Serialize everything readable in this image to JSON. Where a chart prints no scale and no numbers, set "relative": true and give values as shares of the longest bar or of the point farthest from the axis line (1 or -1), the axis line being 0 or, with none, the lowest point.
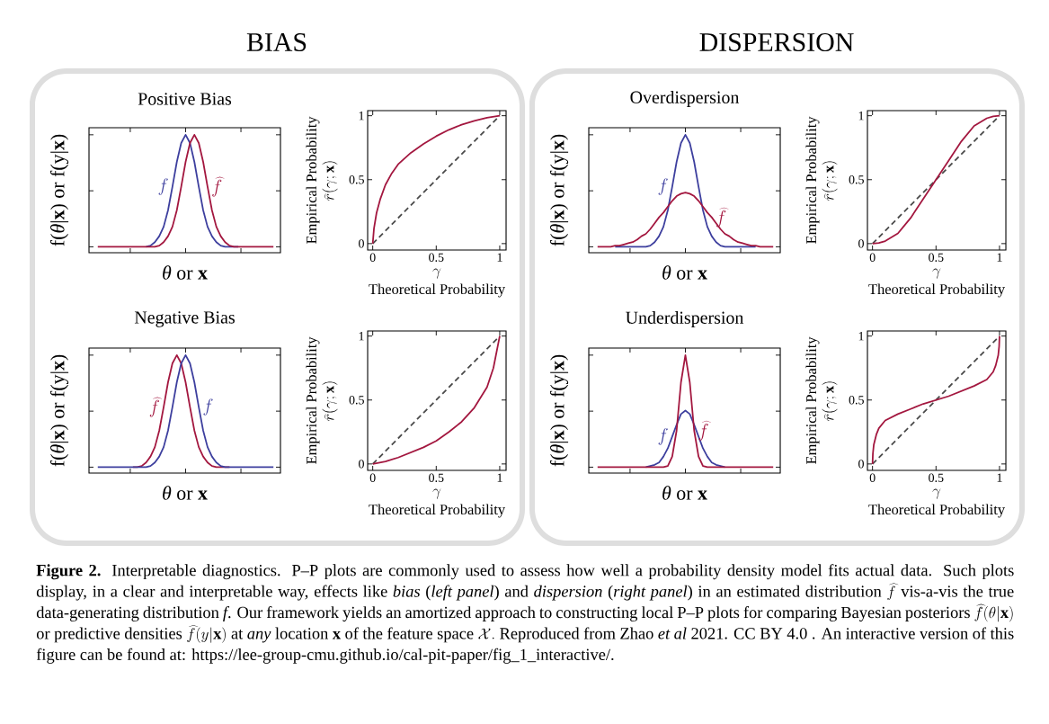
{
  "chart_data": [
    {
      "type": "line",
      "title": "Positive Bias",
      "xlabel": "*θ* or **x**",
      "ylabel": "f(*θ*|**x**) or f(y|**x**)",
      "relative": true,
      "categories": [
        null,
        null,
        null,
        null,
        null,
        null,
        null,
        null,
        null,
        null,
        null,
        null,
        null,
        null,
        null,
        null,
        null,
        null,
        null,
        null,
        null,
        null,
        null,
        null,
        null,
        null,
        null,
        null,
        null,
        null,
        null,
        null,
        null,
        null,
        null,
        null,
        null,
        null,
        null,
        null,
        null
      ],
      "series": [
        {
          "name": "f",
          "color": "#3d3f9e",
          "values": [
            null,
            null,
            null,
            null,
            null,
            null,
            null,
            null,
            null,
            null,
            null,
            0.05,
            0.06,
            0.09,
            0.14,
            0.22,
            0.36,
            0.56,
            0.77,
            0.93,
            1,
            0.93,
            0.77,
            0.56,
            0.36,
            0.22,
            0.14,
            0.09,
            0.06,
            0.05,
            0.05,
            0.05,
            0.05,
            null,
            null,
            null,
            null,
            null,
            null,
            null,
            null
          ]
        },
        {
          "name": "\\widehat{f}",
          "color": "#a3173f",
          "values": [
            0.05,
            0.05,
            0.05,
            0.05,
            0.05,
            0.05,
            0.05,
            0.05,
            0.05,
            0.05,
            0.05,
            0.05,
            0.05,
            0.05,
            0.06,
            0.09,
            0.14,
            0.22,
            0.36,
            0.56,
            0.77,
            0.93,
            1,
            0.93,
            0.77,
            0.56,
            0.36,
            0.22,
            0.14,
            0.09,
            0.06,
            0.05,
            0.05,
            0.05,
            0.05,
            0.05,
            0.05,
            0.05,
            0.05,
            0.05,
            0.05
          ]
        }
      ],
      "annotations": [
        "BIAS",
        "**Figure 2.** Interpretable diagnostics. P–P plots are commonly used to assess how well a probability density model fits actual data. Such plots display, in a clear and interpretable way, effects like *bias* (*left panel*) and *dispersion* (*right panel*) in an estimated distribution",
        "\\widehat{f}",
        "vis-a-vis the true data-generating distribution *f*. Our framework yields an amortized approach to constructing local P–P plots for comparing Bayesian posteriors",
        "\\widehat{f}(\\theta|\\mathbf{x})",
        "or predictive densities",
        "\\widehat{f}(y|\\mathbf{x})",
        "at *any* location **x** of the feature space",
        "\\mathcal{X}.",
        "Reproduced from Zhao *et al* 2021. CC BY 4.0 . An interactive version of this figure can be found at: https://lee-group-cmu.github.io/cal-pit-paper/fig_1_interactive/."
      ]
    },
    {
      "type": "line",
      "xlabel": "Theoretical Probability",
      "ylabel": "Empirical Probability",
      "xlim": [
        -0.04,
        1.05
      ],
      "ylim": [
        -0.05,
        1.04
      ],
      "xticks": [
        0,
        0.5,
        1
      ],
      "yticks": [
        0,
        0.5,
        1
      ],
      "series": [
        {
          "color": "#4a4a4a",
          "line_style": "dashed",
          "x": [
            0,
            1
          ],
          "values": [
            0,
            1
          ]
        },
        {
          "color": "#a3173f",
          "x": [
            0,
            0.01,
            0.03,
            0.06,
            0.1,
            0.15,
            0.2,
            0.3,
            0.4,
            0.5,
            0.6,
            0.7,
            0.8,
            0.9,
            1
          ],
          "values": [
            0,
            0.12,
            0.24,
            0.35,
            0.46,
            0.55,
            0.62,
            0.71,
            0.78,
            0.84,
            0.89,
            0.93,
            0.96,
            0.985,
            1
          ]
        }
      ],
      "annotations": [
        "\\widehat{r}(\\gamma;\\mathbf{x})",
        "\\gamma"
      ]
    },
    {
      "type": "line",
      "title": "Overdispersion",
      "xlabel": "*θ* or **x**",
      "ylabel": "f(*θ*|**x**) or f(y|**x**)",
      "relative": true,
      "categories": [
        null,
        null,
        null,
        null,
        null,
        null,
        null,
        null,
        null,
        null,
        null,
        null,
        null,
        null,
        null,
        null,
        null,
        null,
        null,
        null,
        null,
        null,
        null,
        null,
        null,
        null,
        null,
        null,
        null,
        null,
        null,
        null,
        null,
        null,
        null,
        null,
        null,
        null,
        null,
        null,
        null
      ],
      "series": [
        {
          "name": "f",
          "color": "#3d3f9e",
          "values": [
            null,
            null,
            null,
            null,
            0.05,
            0.05,
            0.05,
            0.05,
            0.05,
            0.05,
            0.05,
            0.05,
            0.06,
            0.09,
            0.14,
            0.22,
            0.36,
            0.56,
            0.77,
            0.93,
            1,
            0.93,
            0.77,
            0.56,
            0.36,
            0.22,
            0.14,
            0.09,
            0.06,
            0.05,
            0.05,
            0.05,
            0.05,
            0.05,
            0.05,
            0.05,
            0.05,
            null,
            null,
            null,
            null
          ]
        },
        {
          "name": "\\widehat{f}",
          "color": "#a3173f",
          "values": [
            0.05,
            0.05,
            0.05,
            0.05,
            0.06,
            0.06,
            0.07,
            0.08,
            0.09,
            0.11,
            0.14,
            0.16,
            0.2,
            0.25,
            0.3,
            0.34,
            0.39,
            0.44,
            0.48,
            0.5,
            0.51,
            0.5,
            0.48,
            0.44,
            0.39,
            0.34,
            0.3,
            0.25,
            0.2,
            0.16,
            0.14,
            0.11,
            0.09,
            0.08,
            0.07,
            0.06,
            0.06,
            0.05,
            0.05,
            0.05,
            0.05
          ]
        }
      ],
      "annotations": [
        "DISPERSION"
      ]
    },
    {
      "type": "line",
      "xlabel": "Theoretical Probability",
      "ylabel": "Empirical Probability",
      "xlim": [
        -0.04,
        1.05
      ],
      "ylim": [
        -0.05,
        1.04
      ],
      "xticks": [
        0,
        0.5,
        1
      ],
      "yticks": [
        0,
        0.5,
        1
      ],
      "series": [
        {
          "color": "#4a4a4a",
          "line_style": "dashed",
          "x": [
            0,
            1
          ],
          "values": [
            0,
            1
          ]
        },
        {
          "color": "#a3173f",
          "x": [
            0,
            0.05,
            0.1,
            0.2,
            0.3,
            0.4,
            0.5,
            0.6,
            0.7,
            0.8,
            0.9,
            0.95,
            1
          ],
          "values": [
            0,
            0.005,
            0.02,
            0.08,
            0.2,
            0.35,
            0.5,
            0.65,
            0.8,
            0.92,
            0.98,
            0.995,
            1
          ]
        }
      ],
      "annotations": [
        "\\widehat{r}(\\gamma;\\mathbf{x})",
        "\\gamma"
      ]
    },
    {
      "type": "line",
      "title": "Negative Bias",
      "xlabel": "*θ* or **x**",
      "ylabel": "f(*θ*|**x**) or f(y|**x**)",
      "relative": true,
      "categories": [
        null,
        null,
        null,
        null,
        null,
        null,
        null,
        null,
        null,
        null,
        null,
        null,
        null,
        null,
        null,
        null,
        null,
        null,
        null,
        null,
        null,
        null,
        null,
        null,
        null,
        null,
        null,
        null,
        null,
        null,
        null,
        null,
        null,
        null,
        null,
        null,
        null,
        null,
        null,
        null,
        null
      ],
      "series": [
        {
          "name": "\\widehat{f}",
          "color": "#a3173f",
          "values": [
            null,
            null,
            null,
            null,
            null,
            null,
            null,
            null,
            0.05,
            0.05,
            0.06,
            0.09,
            0.14,
            0.22,
            0.36,
            0.56,
            0.77,
            0.93,
            1,
            0.93,
            0.77,
            0.56,
            0.36,
            0.22,
            0.14,
            0.09,
            0.06,
            0.05,
            0.05,
            0.05,
            0.05,
            null,
            null,
            null,
            null,
            null,
            null,
            null,
            null,
            null,
            null
          ]
        },
        {
          "name": "f",
          "color": "#3d3f9e",
          "values": [
            0.05,
            0.05,
            0.05,
            0.05,
            0.05,
            0.05,
            0.05,
            0.05,
            0.05,
            0.05,
            0.05,
            0.05,
            0.06,
            0.09,
            0.14,
            0.22,
            0.36,
            0.56,
            0.77,
            0.93,
            1,
            0.93,
            0.77,
            0.56,
            0.36,
            0.22,
            0.14,
            0.09,
            0.06,
            0.05,
            0.05,
            0.05,
            0.05,
            0.05,
            0.05,
            0.05,
            0.05,
            0.05,
            0.05,
            0.05,
            0.05
          ]
        }
      ]
    },
    {
      "type": "line",
      "xlabel": "Theoretical Probability",
      "ylabel": "Empirical Probability",
      "xlim": [
        -0.04,
        1.05
      ],
      "ylim": [
        -0.05,
        1.04
      ],
      "xticks": [
        0,
        0.5,
        1
      ],
      "yticks": [
        0,
        0.5,
        1
      ],
      "series": [
        {
          "color": "#4a4a4a",
          "line_style": "dashed",
          "x": [
            0,
            1
          ],
          "values": [
            0,
            1
          ]
        },
        {
          "color": "#a3173f",
          "x": [
            0,
            0.1,
            0.2,
            0.3,
            0.4,
            0.5,
            0.6,
            0.7,
            0.8,
            0.9,
            0.95,
            1
          ],
          "values": [
            0,
            0.02,
            0.05,
            0.09,
            0.13,
            0.18,
            0.25,
            0.33,
            0.44,
            0.6,
            0.75,
            1
          ]
        }
      ],
      "annotations": [
        "\\widehat{r}(\\gamma;\\mathbf{x})",
        "\\gamma"
      ]
    },
    {
      "type": "line",
      "title": "Underdispersion",
      "xlabel": "*θ* or **x**",
      "ylabel": "f(*θ*|**x**) or f(y|**x**)",
      "relative": true,
      "categories": [
        null,
        null,
        null,
        null,
        null,
        null,
        null,
        null,
        null,
        null,
        null,
        null,
        null,
        null,
        null,
        null,
        null,
        null,
        null,
        null,
        null,
        null,
        null,
        null,
        null,
        null,
        null,
        null,
        null,
        null,
        null,
        null,
        null,
        null,
        null,
        null,
        null,
        null,
        null,
        null,
        null
      ],
      "series": [
        {
          "name": "f",
          "color": "#3d3f9e",
          "values": [
            null,
            null,
            null,
            null,
            null,
            null,
            null,
            null,
            null,
            null,
            null,
            0.05,
            0.06,
            0.07,
            0.09,
            0.14,
            0.21,
            0.31,
            0.41,
            0.5,
            0.53,
            0.5,
            0.41,
            0.31,
            0.21,
            0.14,
            0.09,
            0.07,
            0.06,
            0.05,
            null,
            null,
            null,
            null,
            null,
            null,
            null,
            null,
            null,
            null,
            null
          ]
        },
        {
          "name": "\\widehat{f}",
          "color": "#a3173f",
          "values": [
            0.05,
            0.05,
            0.05,
            0.05,
            0.05,
            0.05,
            0.05,
            0.05,
            0.05,
            0.05,
            0.05,
            0.05,
            0.05,
            0.05,
            0.05,
            0.05,
            0.06,
            0.14,
            0.36,
            0.77,
            1,
            0.77,
            0.36,
            0.14,
            0.06,
            0.05,
            0.05,
            0.05,
            0.05,
            0.05,
            0.05,
            0.05,
            0.05,
            0.05,
            0.05,
            0.05,
            0.05,
            0.05,
            0.05,
            0.05,
            0.05
          ]
        }
      ]
    },
    {
      "type": "line",
      "xlabel": "Theoretical Probability",
      "ylabel": "Empirical Probability",
      "xlim": [
        -0.04,
        1.05
      ],
      "ylim": [
        -0.05,
        1.04
      ],
      "xticks": [
        0,
        0.5,
        1
      ],
      "yticks": [
        0,
        0.5,
        1
      ],
      "series": [
        {
          "color": "#4a4a4a",
          "line_style": "dashed",
          "x": [
            0,
            1
          ],
          "values": [
            0,
            1
          ]
        },
        {
          "color": "#a3173f",
          "x": [
            0,
            0.003,
            0.01,
            0.03,
            0.05,
            0.1,
            0.2,
            0.3,
            0.4,
            0.5,
            0.6,
            0.7,
            0.8,
            0.9,
            0.95,
            0.97,
            0.99,
            0.997,
            1
          ],
          "values": [
            0,
            0.08,
            0.15,
            0.23,
            0.28,
            0.34,
            0.39,
            0.43,
            0.47,
            0.5,
            0.53,
            0.57,
            0.61,
            0.66,
            0.72,
            0.77,
            0.85,
            0.92,
            1
          ]
        }
      ],
      "annotations": [
        "\\widehat{r}(\\gamma;\\mathbf{x})",
        "\\gamma"
      ]
    }
  ]
}
